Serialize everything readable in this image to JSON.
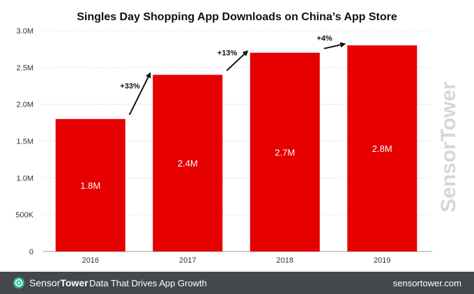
{
  "chart_data": {
    "type": "bar",
    "title": "Singles Day Shopping App Downloads on China’s App Store",
    "categories": [
      "2016",
      "2017",
      "2018",
      "2019"
    ],
    "values": [
      1.8,
      2.4,
      2.7,
      2.8
    ],
    "data_labels": [
      "1.8M",
      "2.4M",
      "2.7M",
      "2.8M"
    ],
    "ylim": [
      0,
      3.0
    ],
    "yticks": [
      0,
      0.5,
      1.0,
      1.5,
      2.0,
      2.5,
      3.0
    ],
    "ytick_labels": [
      "0",
      "500K",
      "1.0M",
      "1.5M",
      "2.0M",
      "2.5M",
      "3.0M"
    ],
    "growth_annotations": [
      "+33%",
      "+13%",
      "+4%"
    ],
    "xlabel": "",
    "ylabel": "",
    "grid": true,
    "bar_color": "#e60000"
  },
  "footer": {
    "brand_part1": "Sensor",
    "brand_part2": "Tower",
    "tagline": "Data That Drives App Growth",
    "url": "sensortower.com"
  },
  "watermark": {
    "text": "SensorTower"
  },
  "colors": {
    "accent": "#e60000",
    "footer_bg": "#44484c",
    "grid": "#cccccc"
  }
}
